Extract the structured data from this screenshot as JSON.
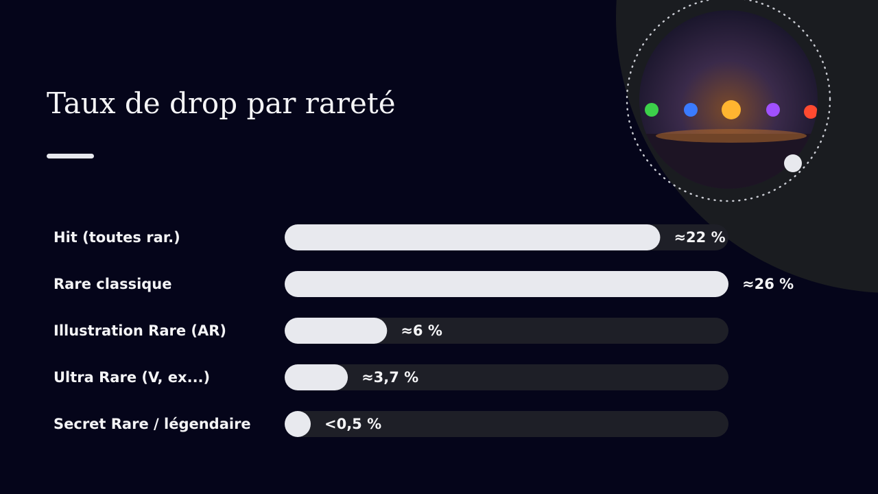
{
  "chart_data": {
    "type": "bar",
    "orientation": "horizontal",
    "title": "Taux de drop par rareté",
    "categories": [
      "Hit (toutes rar.)",
      "Rare classique",
      "Illustration Rare (AR)",
      "Ultra Rare (V, ex...)",
      "Secret Rare / légendaire"
    ],
    "values": [
      22,
      26,
      6,
      3.7,
      0.5
    ],
    "value_labels": [
      "≈22 %",
      "≈26 %",
      "≈6 %",
      "≈3,7 %",
      "<0,5 %"
    ],
    "xlim": [
      0,
      26
    ],
    "color": "#e8e9ee",
    "track_color": "#1e1f27"
  }
}
